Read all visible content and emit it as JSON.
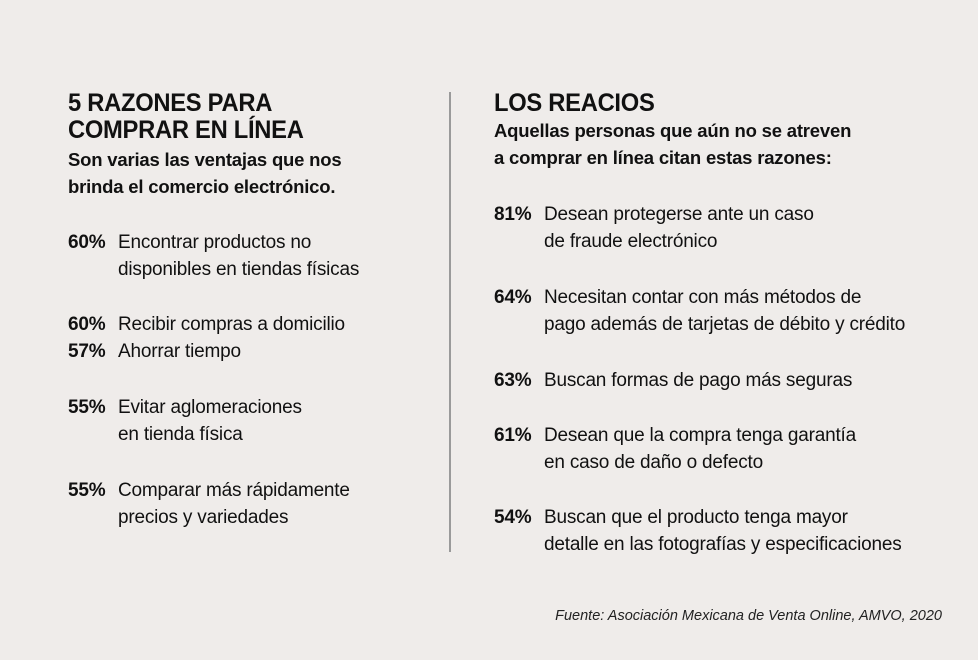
{
  "left": {
    "title": [
      "5 RAZONES PARA",
      "COMPRAR EN LÍNEA"
    ],
    "subtitle": [
      "Son varias las ventajas que nos",
      "brinda el comercio electrónico."
    ],
    "items": [
      {
        "pct": "60%",
        "text": "Encontrar productos no\ndisponibles en tiendas físicas"
      },
      {
        "pct": "60%",
        "text": "Recibir compras a domicilio"
      },
      {
        "pct": "57%",
        "text": "Ahorrar tiempo"
      },
      {
        "pct": "55%",
        "text": "Evitar aglomeraciones\nen tienda física"
      },
      {
        "pct": "55%",
        "text": "Comparar más rápidamente\nprecios y variedades"
      }
    ]
  },
  "right": {
    "title": "LOS REACIOS",
    "subtitle": [
      "Aquellas personas que aún no se atreven",
      "a comprar en línea citan estas razones:"
    ],
    "items": [
      {
        "pct": "81%",
        "text": "Desean protegerse ante un caso\nde fraude electrónico"
      },
      {
        "pct": "64%",
        "text": "Necesitan contar con más métodos de\npago además de tarjetas de débito y crédito"
      },
      {
        "pct": "63%",
        "text": "Buscan formas de pago más seguras"
      },
      {
        "pct": "61%",
        "text": "Desean que la compra tenga garantía\nen caso de daño o defecto"
      },
      {
        "pct": "54%",
        "text": "Buscan que el producto tenga mayor\ndetalle en las fotografías y especificaciones"
      }
    ]
  },
  "source": "Fuente: Asociación Mexicana de Venta Online, AMVO, 2020"
}
